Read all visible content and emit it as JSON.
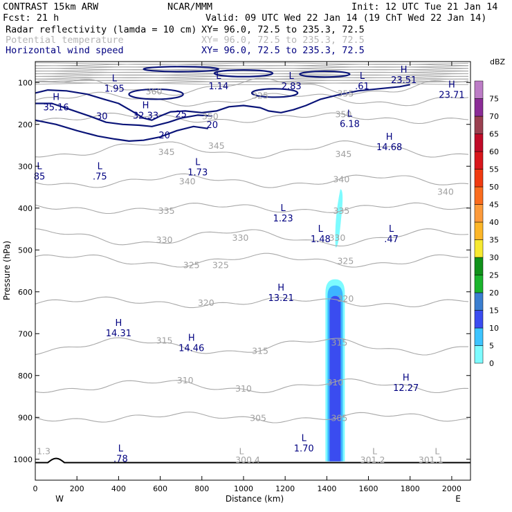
{
  "header": {
    "line1_left": "CONTRAST 15km ARW",
    "line1_center": "NCAR/MMM",
    "line1_right": "Init: 12 UTC Tue 21 Jan 14",
    "line2_left": "Fcst:    21 h",
    "line2_right": "Valid: 09 UTC Wed 22 Jan 14 (19 ChT Wed 22 Jan 14)",
    "fields": [
      {
        "name": "Radar reflectivity (lamda = 10 cm)",
        "xy": "XY=   96.0, 72.5 to 235.3, 72.5",
        "color": "#000000"
      },
      {
        "name": "Potential temperature",
        "xy": "XY=   96.0, 72.5 to 235.3, 72.5",
        "color": "#b4b4b4"
      },
      {
        "name": "Horizontal wind speed",
        "xy": "XY=   96.0, 72.5 to 235.3, 72.5",
        "color": "#000080"
      }
    ]
  },
  "colors": {
    "theta": "#a8a8a8",
    "wind": "#0a1478",
    "refl_light": "#7dfbff",
    "refl_mid": "#3db4ff",
    "refl_dark": "#3a4cf0"
  },
  "chart_data": {
    "type": "contour-cross-section",
    "xlabel": "Distance (km)",
    "ylabel": "Pressure (hPa)",
    "x_ticks": [
      0,
      200,
      400,
      600,
      800,
      1000,
      1200,
      1400,
      1600,
      1800,
      2000
    ],
    "y_ticks": [
      100,
      200,
      300,
      400,
      500,
      600,
      700,
      800,
      900,
      1000
    ],
    "xlim": [
      0,
      2090
    ],
    "ylim": [
      1050,
      50
    ],
    "x_end_labels": {
      "left": "W",
      "right": "E"
    },
    "theta_contours": [
      {
        "value": 305,
        "p": 900
      },
      {
        "value": 310,
        "p": 825
      },
      {
        "value": 315,
        "p": 730
      },
      {
        "value": 320,
        "p": 625
      },
      {
        "value": 325,
        "p": 525
      },
      {
        "value": 330,
        "p": 470
      },
      {
        "value": 335,
        "p": 400
      },
      {
        "value": 340,
        "p": 335
      },
      {
        "value": 345,
        "p": 260
      },
      {
        "value": 350,
        "p": 185
      },
      {
        "value": 355,
        "p": 140
      },
      {
        "value": 360,
        "p": 110
      }
    ],
    "theta_labels": [
      {
        "text": "305",
        "x": 1070,
        "p": 900
      },
      {
        "text": "305",
        "x": 1460,
        "p": 900
      },
      {
        "text": "310",
        "x": 720,
        "p": 810
      },
      {
        "text": "310",
        "x": 1000,
        "p": 830
      },
      {
        "text": "310",
        "x": 1440,
        "p": 815
      },
      {
        "text": "315",
        "x": 620,
        "p": 715
      },
      {
        "text": "315",
        "x": 1080,
        "p": 740
      },
      {
        "text": "315",
        "x": 1460,
        "p": 720
      },
      {
        "text": "320",
        "x": 820,
        "p": 625
      },
      {
        "text": "320",
        "x": 1490,
        "p": 615
      },
      {
        "text": "325",
        "x": 750,
        "p": 535
      },
      {
        "text": "325",
        "x": 890,
        "p": 535
      },
      {
        "text": "325",
        "x": 1490,
        "p": 525
      },
      {
        "text": "330",
        "x": 620,
        "p": 475
      },
      {
        "text": "330",
        "x": 985,
        "p": 470
      },
      {
        "text": "330",
        "x": 1450,
        "p": 470
      },
      {
        "text": "335",
        "x": 630,
        "p": 405
      },
      {
        "text": "335",
        "x": 1470,
        "p": 405
      },
      {
        "text": "340",
        "x": 730,
        "p": 335
      },
      {
        "text": "340",
        "x": 1470,
        "p": 330
      },
      {
        "text": "340",
        "x": 1970,
        "p": 360
      },
      {
        "text": "345",
        "x": 630,
        "p": 265
      },
      {
        "text": "345",
        "x": 870,
        "p": 250
      },
      {
        "text": "345",
        "x": 1480,
        "p": 270
      },
      {
        "text": "350",
        "x": 840,
        "p": 180
      },
      {
        "text": "350",
        "x": 1480,
        "p": 175
      },
      {
        "text": "355",
        "x": 1490,
        "p": 125
      },
      {
        "text": "360",
        "x": 570,
        "p": 120
      },
      {
        "text": "325",
        "x": 1080,
        "p": 130
      },
      {
        "text": "1.3",
        "x": 40,
        "p": 980
      },
      {
        "text": "300.4",
        "x": 1020,
        "p": 1000
      },
      {
        "text": "301.2",
        "x": 1620,
        "p": 1000
      },
      {
        "text": "301.1",
        "x": 1900,
        "p": 1000
      }
    ],
    "theta_minmax_markers": [
      {
        "text": "L",
        "x": 990,
        "p": 980
      },
      {
        "text": "L",
        "x": 1630,
        "p": 980
      },
      {
        "text": "L",
        "x": 1930,
        "p": 980
      }
    ],
    "wind_contour_labels": [
      {
        "text": "30",
        "x": 320,
        "p": 180
      },
      {
        "text": "25",
        "x": 700,
        "p": 175
      },
      {
        "text": "20",
        "x": 620,
        "p": 225
      },
      {
        "text": "20",
        "x": 850,
        "p": 200
      }
    ],
    "wind_extrema": [
      {
        "type": "L",
        "value": "1.95",
        "x": 380,
        "p": 100
      },
      {
        "type": "L",
        "value": "1.14",
        "x": 880,
        "p": 95
      },
      {
        "type": "L",
        "value": "2.83",
        "x": 1230,
        "p": 95
      },
      {
        "type": "L",
        "value": ".61",
        "x": 1570,
        "p": 95
      },
      {
        "type": "H",
        "value": "23.51",
        "x": 1770,
        "p": 80
      },
      {
        "type": "H",
        "value": "23.71",
        "x": 2000,
        "p": 115
      },
      {
        "type": "H",
        "value": "35.16",
        "x": 100,
        "p": 145
      },
      {
        "type": "H",
        "value": "32.33",
        "x": 530,
        "p": 165
      },
      {
        "type": "L",
        "value": "6.18",
        "x": 1510,
        "p": 185
      },
      {
        "type": "H",
        "value": "14.68",
        "x": 1700,
        "p": 240
      },
      {
        "type": "L",
        "value": "1.73",
        "x": 780,
        "p": 300
      },
      {
        "type": "L",
        "value": ".75",
        "x": 310,
        "p": 310
      },
      {
        "type": "L",
        "value": "85",
        "x": 20,
        "p": 310
      },
      {
        "type": "L",
        "value": "1.23",
        "x": 1190,
        "p": 410
      },
      {
        "type": "L",
        "value": "1.48",
        "x": 1370,
        "p": 460
      },
      {
        "type": "L",
        "value": ".47",
        "x": 1710,
        "p": 460
      },
      {
        "type": "H",
        "value": "13.21",
        "x": 1180,
        "p": 600
      },
      {
        "type": "H",
        "value": "14.31",
        "x": 400,
        "p": 685
      },
      {
        "type": "H",
        "value": "14.46",
        "x": 750,
        "p": 720
      },
      {
        "type": "H",
        "value": "12.27",
        "x": 1780,
        "p": 815
      },
      {
        "type": "L",
        "value": "1.70",
        "x": 1290,
        "p": 960
      },
      {
        "type": "L",
        "value": ".78",
        "x": 410,
        "p": 985
      }
    ],
    "reflectivity_cells": [
      {
        "x_center": 1455,
        "p_top": 355,
        "p_bottom": 500,
        "dbz": 7
      },
      {
        "x_center": 1440,
        "p_top": 570,
        "p_bottom": 1005,
        "dbz": 7
      },
      {
        "x_center": 1440,
        "p_top": 585,
        "p_bottom": 1005,
        "dbz": 12
      },
      {
        "x_center": 1440,
        "p_top": 610,
        "p_bottom": 1005,
        "dbz": 17
      }
    ],
    "colorbar": {
      "label": "dBZ",
      "levels": [
        0,
        5,
        10,
        15,
        20,
        25,
        30,
        35,
        40,
        45,
        50,
        55,
        60,
        65,
        70,
        75
      ],
      "colors": [
        "#7dfbff",
        "#3dc4ff",
        "#3a4cf0",
        "#3a7ed0",
        "#1ab42d",
        "#10911a",
        "#f7e930",
        "#fcb628",
        "#fc9a3a",
        "#fa6c1e",
        "#f03a10",
        "#d8161c",
        "#c00a28",
        "#9a4050",
        "#8b2c96",
        "#bc7cc6"
      ]
    }
  }
}
